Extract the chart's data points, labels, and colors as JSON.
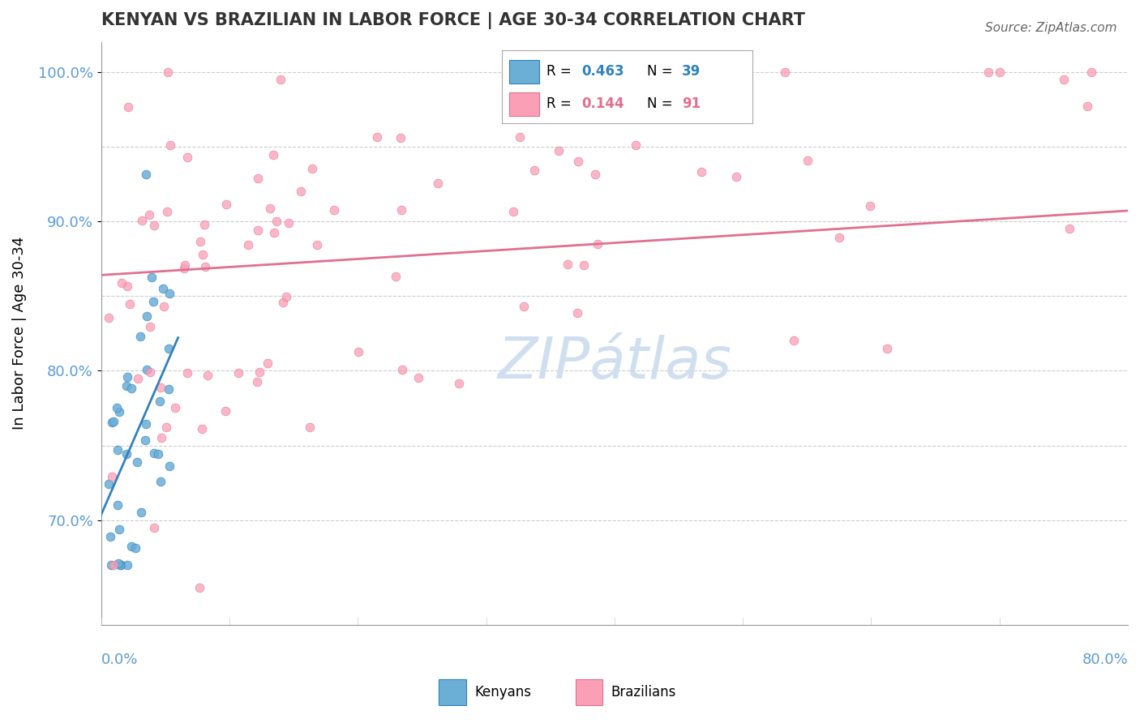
{
  "title": "KENYAN VS BRAZILIAN IN LABOR FORCE | AGE 30-34 CORRELATION CHART",
  "source_text": "Source: ZipAtlas.com",
  "ylabel": "In Labor Force | Age 30-34",
  "xlim": [
    0.0,
    80.0
  ],
  "ylim": [
    63.0,
    102.0
  ],
  "legend_r1": "0.463",
  "legend_n1": "39",
  "legend_r2": "0.144",
  "legend_n2": "91",
  "kenyan_color": "#6baed6",
  "brazilian_color": "#fa9fb5",
  "kenyan_line_color": "#3182bd",
  "brazilian_line_color": "#e07090",
  "axis_color": "#5b9bd5",
  "grid_color": "#cccccc",
  "watermark_color": "#d0dff0",
  "ytick_display": [
    70,
    80,
    90,
    100
  ]
}
